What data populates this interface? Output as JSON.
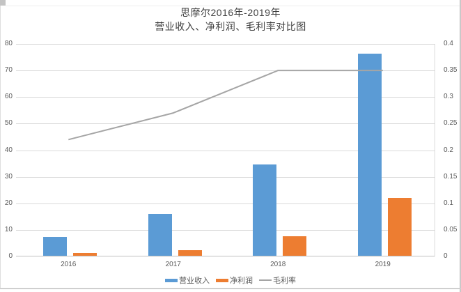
{
  "title": {
    "line1": "思摩尔2016年-2019年",
    "line2": "营业收入、净利润、毛利率对比图"
  },
  "chart_data": {
    "type": "bar",
    "subtype": "combo-bar-line-dual-axis",
    "title": "思摩尔2016年-2019年 营业收入、净利润、毛利率对比图",
    "categories": [
      "2016",
      "2017",
      "2018",
      "2019"
    ],
    "bar_series": [
      {
        "key": "revenue",
        "name": "营业收入",
        "color": "#5B9BD5",
        "axis": "left",
        "values": [
          7.07,
          15.65,
          34.34,
          76.11
        ]
      },
      {
        "key": "net-profit",
        "name": "净利润",
        "color": "#ED7D31",
        "axis": "left",
        "values": [
          1.06,
          2.19,
          7.34,
          21.74
        ]
      }
    ],
    "line_series": [
      {
        "key": "gross-margin",
        "name": "毛利率",
        "color": "#A5A5A5",
        "axis": "right",
        "values": [
          0.22,
          0.27,
          0.35,
          0.35
        ]
      }
    ],
    "left_axis": {
      "min": 0,
      "max": 80,
      "step": 10,
      "tick_labels": [
        "0",
        "10",
        "20",
        "30",
        "40",
        "50",
        "60",
        "70",
        "80"
      ]
    },
    "right_axis": {
      "min": 0,
      "max": 0.4,
      "step": 0.05,
      "tick_labels": [
        "0",
        "0.05",
        "0.1",
        "0.15",
        "0.2",
        "0.25",
        "0.3",
        "0.35",
        "0.4"
      ]
    },
    "grid": true,
    "legend_position": "bottom"
  },
  "colors": {
    "revenue_bar": "#5B9BD5",
    "net_profit_bar": "#ED7D31",
    "gross_margin_line": "#A5A5A5",
    "gridline": "#d9d9d9",
    "axis_line": "#bfbfbf",
    "axis_text": "#595959",
    "title_text": "#3f3f3f"
  }
}
